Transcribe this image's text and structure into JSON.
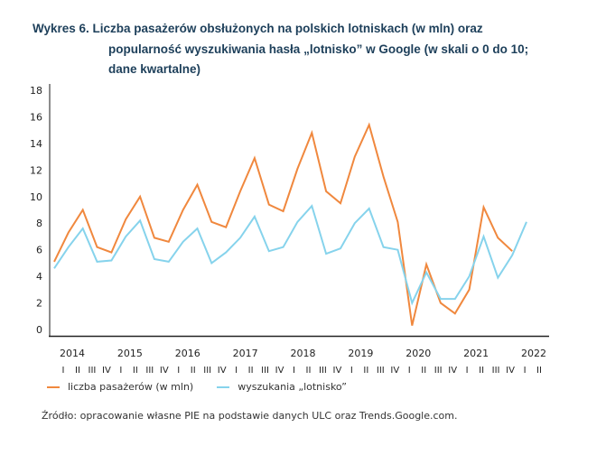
{
  "title": {
    "line1": "Wykres 6. Liczba pasażerów obsłużonych na polskich lotniskach (w mln) oraz",
    "line2": "popularność wyszukiwania hasła „lotnisko” w Google (w skali o 0 do 10;",
    "line3": "dane kwartalne)"
  },
  "colors": {
    "passengers": "#f0883e",
    "searches": "#86d3ec",
    "title": "#1d3f5a",
    "axis": "#8c8c8c"
  },
  "legend": [
    {
      "label": "liczba pasażerów (w mln)",
      "color": "#f0883e"
    },
    {
      "label": "wyszukania „lotnisko”",
      "color": "#86d3ec"
    }
  ],
  "source": "Źródło: opracowanie własne PIE na podstawie danych ULC oraz Trends.Google.com.",
  "chart_data": {
    "type": "line",
    "title": "Liczba pasażerów obsłużonych na polskich lotniskach (w mln) oraz popularność wyszukiwania hasła „lotnisko” w Google",
    "xlabel": "",
    "ylabel": "",
    "ylim": [
      0,
      18
    ],
    "yticks": [
      0,
      2,
      4,
      6,
      8,
      10,
      12,
      14,
      16,
      18
    ],
    "grid": false,
    "legend_position": "bottom-left",
    "years": [
      "2014",
      "2015",
      "2016",
      "2017",
      "2018",
      "2019",
      "2020",
      "2021",
      "2022"
    ],
    "quarter_labels": [
      "I",
      "II",
      "III",
      "IV"
    ],
    "x": [
      "2014 I",
      "2014 II",
      "2014 III",
      "2014 IV",
      "2015 I",
      "2015 II",
      "2015 III",
      "2015 IV",
      "2016 I",
      "2016 II",
      "2016 III",
      "2016 IV",
      "2017 I",
      "2017 II",
      "2017 III",
      "2017 IV",
      "2018 I",
      "2018 II",
      "2018 III",
      "2018 IV",
      "2019 I",
      "2019 II",
      "2019 III",
      "2019 IV",
      "2020 I",
      "2020 II",
      "2020 III",
      "2020 IV",
      "2021 I",
      "2021 II",
      "2021 III",
      "2021 IV",
      "2022 I",
      "2022 II"
    ],
    "series": [
      {
        "name": "liczba pasażerów (w mln)",
        "color": "#f0883e",
        "values": [
          5.1,
          7.3,
          9.0,
          6.2,
          5.8,
          8.3,
          10.0,
          6.9,
          6.6,
          9.0,
          10.9,
          8.1,
          7.7,
          10.4,
          12.9,
          9.4,
          8.9,
          12.1,
          14.8,
          10.4,
          9.5,
          13.0,
          15.4,
          11.5,
          8.1,
          0.3,
          4.9,
          2.0,
          1.2,
          3.0,
          9.2,
          6.9,
          5.9,
          null
        ]
      },
      {
        "name": "wyszukania „lotnisko”",
        "color": "#86d3ec",
        "values": [
          4.6,
          6.2,
          7.6,
          5.1,
          5.2,
          7.0,
          8.2,
          5.3,
          5.1,
          6.6,
          7.6,
          5.0,
          5.8,
          6.9,
          8.5,
          5.9,
          6.2,
          8.1,
          9.3,
          5.7,
          6.1,
          8.0,
          9.1,
          6.2,
          6.0,
          2.0,
          4.3,
          2.3,
          2.3,
          4.0,
          7.0,
          3.9,
          5.6,
          8.1
        ]
      }
    ]
  }
}
